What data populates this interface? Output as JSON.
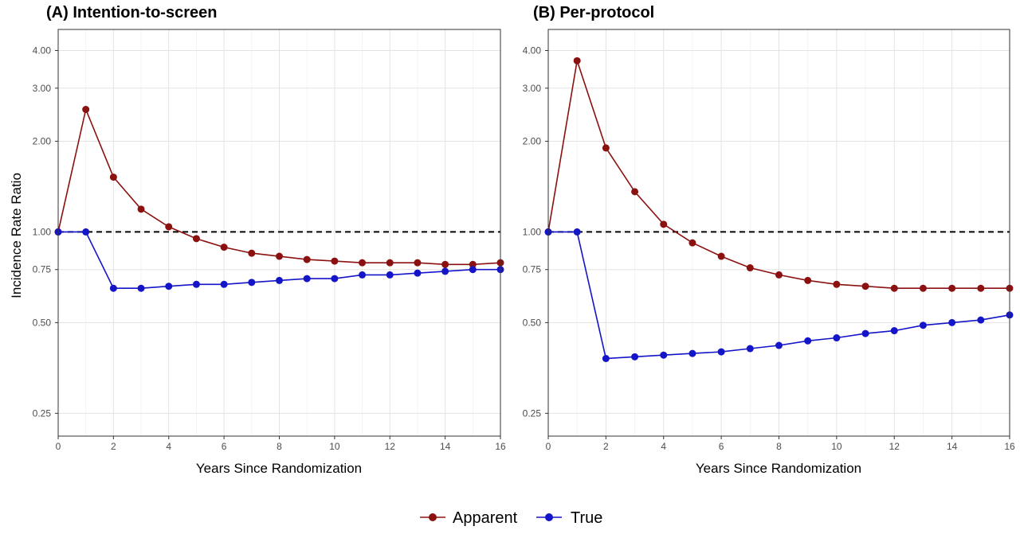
{
  "chart_data": [
    {
      "type": "line",
      "title": "(A) Intention-to-screen",
      "xlabel": "Years Since Randomization",
      "ylabel": "Incidence Rate Ratio",
      "xlim": [
        0,
        16
      ],
      "xticks": [
        0,
        2,
        4,
        6,
        8,
        10,
        12,
        14,
        16
      ],
      "ylim": [
        0.21,
        4.7
      ],
      "yscale": "log",
      "yticks": [
        0.25,
        0.5,
        0.75,
        1.0,
        2.0,
        3.0,
        4.0
      ],
      "ytick_labels": [
        "0.25",
        "0.50",
        "0.75",
        "1.00",
        "2.00",
        "3.00",
        "4.00"
      ],
      "reference_line": {
        "y": 1.0,
        "style": "dashed"
      },
      "grid": true,
      "x": [
        0,
        1,
        2,
        3,
        4,
        5,
        6,
        7,
        8,
        9,
        10,
        11,
        12,
        13,
        14,
        15,
        16
      ],
      "series": [
        {
          "name": "Apparent",
          "color": "#8b1010",
          "values": [
            1.0,
            2.55,
            1.52,
            1.19,
            1.04,
            0.95,
            0.89,
            0.85,
            0.83,
            0.81,
            0.8,
            0.79,
            0.79,
            0.79,
            0.78,
            0.78,
            0.79
          ]
        },
        {
          "name": "True",
          "color": "#1414c8",
          "values": [
            1.0,
            1.0,
            0.65,
            0.65,
            0.66,
            0.67,
            0.67,
            0.68,
            0.69,
            0.7,
            0.7,
            0.72,
            0.72,
            0.73,
            0.74,
            0.75,
            0.75
          ]
        }
      ]
    },
    {
      "type": "line",
      "title": "(B) Per-protocol",
      "xlabel": "Years Since Randomization",
      "ylabel": "",
      "xlim": [
        0,
        16
      ],
      "xticks": [
        0,
        2,
        4,
        6,
        8,
        10,
        12,
        14,
        16
      ],
      "ylim": [
        0.21,
        4.7
      ],
      "yscale": "log",
      "yticks": [
        0.25,
        0.5,
        0.75,
        1.0,
        2.0,
        3.0,
        4.0
      ],
      "ytick_labels": [
        "0.25",
        "0.50",
        "0.75",
        "1.00",
        "2.00",
        "3.00",
        "4.00"
      ],
      "reference_line": {
        "y": 1.0,
        "style": "dashed"
      },
      "grid": true,
      "x": [
        0,
        1,
        2,
        3,
        4,
        5,
        6,
        7,
        8,
        9,
        10,
        11,
        12,
        13,
        14,
        15,
        16
      ],
      "series": [
        {
          "name": "Apparent",
          "color": "#8b1010",
          "values": [
            1.0,
            3.7,
            1.9,
            1.36,
            1.06,
            0.92,
            0.83,
            0.76,
            0.72,
            0.69,
            0.67,
            0.66,
            0.65,
            0.65,
            0.65,
            0.65,
            0.65
          ]
        },
        {
          "name": "True",
          "color": "#1414c8",
          "values": [
            1.0,
            1.0,
            0.38,
            0.385,
            0.39,
            0.395,
            0.4,
            0.41,
            0.42,
            0.435,
            0.445,
            0.46,
            0.47,
            0.49,
            0.5,
            0.51,
            0.53
          ]
        }
      ]
    }
  ],
  "legend": {
    "position": "bottom",
    "items": [
      {
        "label": "Apparent",
        "color": "#8b1010"
      },
      {
        "label": "True",
        "color": "#1414c8"
      }
    ]
  }
}
